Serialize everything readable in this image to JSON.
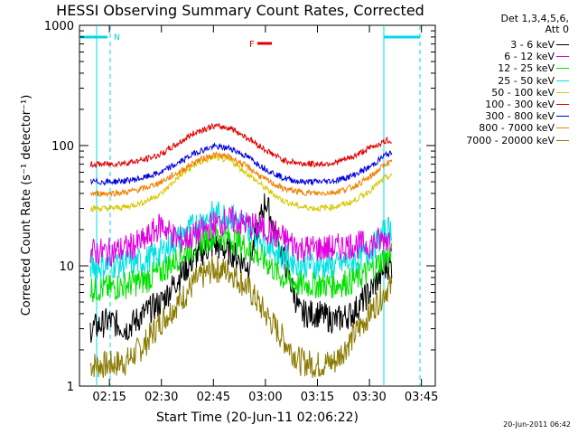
{
  "chart_data": {
    "type": "line",
    "title": "HESSI Observing Summary Count Rates, Corrected",
    "xlabel": "Start Time (20-Jun-11 02:06:22)",
    "ylabel": "Corrected Count Rate (s⁻¹ detector⁻¹)",
    "yscale": "log",
    "ylim": [
      1,
      1000
    ],
    "xlim": [
      "02:06:22",
      "03:49:00"
    ],
    "x_ticks": [
      "02:15",
      "02:30",
      "02:45",
      "03:00",
      "03:15",
      "03:30",
      "03:45"
    ],
    "y_ticks": [
      "1",
      "10",
      "100",
      "1000"
    ],
    "grid": false,
    "legend_position": "right",
    "legend_header": [
      "Det 1,3,4,5,6,",
      "Att 0"
    ],
    "flag_label": "F",
    "night_marker_label": "N",
    "series": [
      {
        "name": "3 - 6 keV",
        "color": "#000000",
        "x": [
          "02:10",
          "02:15",
          "02:20",
          "02:25",
          "02:30",
          "02:35",
          "02:40",
          "02:45",
          "02:50",
          "02:55",
          "03:00",
          "03:05",
          "03:10",
          "03:15",
          "03:20",
          "03:25",
          "03:30",
          "03:35"
        ],
        "values": [
          3,
          3.5,
          3,
          4,
          5,
          8,
          12,
          15,
          13,
          10,
          35,
          12,
          4,
          4,
          3.5,
          4,
          6,
          10
        ]
      },
      {
        "name": "6 - 12 keV",
        "color": "#e000e0",
        "x": [
          "02:10",
          "02:15",
          "02:20",
          "02:25",
          "02:30",
          "02:35",
          "02:40",
          "02:45",
          "02:50",
          "02:55",
          "03:00",
          "03:05",
          "03:10",
          "03:15",
          "03:20",
          "03:25",
          "03:30",
          "03:35"
        ],
        "values": [
          13,
          13,
          14,
          16,
          22,
          16,
          18,
          22,
          24,
          22,
          20,
          17,
          14,
          14,
          14,
          15,
          15,
          17
        ]
      },
      {
        "name": "12 - 25 keV",
        "color": "#00e000",
        "x": [
          "02:10",
          "02:15",
          "02:20",
          "02:25",
          "02:30",
          "02:35",
          "02:40",
          "02:45",
          "02:50",
          "02:55",
          "03:00",
          "03:05",
          "03:10",
          "03:15",
          "03:20",
          "03:25",
          "03:30",
          "03:35"
        ],
        "values": [
          6.5,
          6.5,
          7,
          7.5,
          9,
          12,
          15,
          18,
          17,
          14,
          11,
          8,
          7,
          7,
          7,
          7.5,
          9,
          12
        ]
      },
      {
        "name": "25 - 50 keV",
        "color": "#00e0e0",
        "x": [
          "02:10",
          "02:15",
          "02:20",
          "02:25",
          "02:30",
          "02:35",
          "02:40",
          "02:45",
          "02:50",
          "02:55",
          "03:00",
          "03:05",
          "03:10",
          "03:15",
          "03:20",
          "03:25",
          "03:30",
          "03:35"
        ],
        "values": [
          10,
          10,
          10.5,
          11,
          13,
          17,
          22,
          27,
          26,
          21,
          16,
          12,
          10.5,
          10,
          10,
          11,
          13,
          20
        ]
      },
      {
        "name": "50 - 100 keV",
        "color": "#d8c800",
        "x": [
          "02:10",
          "02:15",
          "02:20",
          "02:25",
          "02:30",
          "02:35",
          "02:40",
          "02:45",
          "02:50",
          "02:55",
          "03:00",
          "03:05",
          "03:10",
          "03:15",
          "03:20",
          "03:25",
          "03:30",
          "03:35"
        ],
        "values": [
          30,
          30,
          31,
          34,
          40,
          55,
          70,
          80,
          75,
          58,
          44,
          35,
          31,
          30,
          31,
          34,
          42,
          55
        ]
      },
      {
        "name": "100 - 300 keV",
        "color": "#e00000",
        "x": [
          "02:10",
          "02:15",
          "02:20",
          "02:25",
          "02:30",
          "02:35",
          "02:40",
          "02:45",
          "02:50",
          "02:55",
          "03:00",
          "03:05",
          "03:10",
          "03:15",
          "03:20",
          "03:25",
          "03:30",
          "03:35"
        ],
        "values": [
          70,
          70,
          72,
          76,
          85,
          105,
          130,
          145,
          140,
          115,
          92,
          76,
          71,
          70,
          72,
          80,
          95,
          110
        ]
      },
      {
        "name": "300 - 800 keV",
        "color": "#0000e0",
        "x": [
          "02:10",
          "02:15",
          "02:20",
          "02:25",
          "02:30",
          "02:35",
          "02:40",
          "02:45",
          "02:50",
          "02:55",
          "03:00",
          "03:05",
          "03:10",
          "03:15",
          "03:20",
          "03:25",
          "03:30",
          "03:35"
        ],
        "values": [
          50,
          50,
          51,
          54,
          60,
          72,
          88,
          98,
          95,
          80,
          64,
          54,
          50,
          50,
          51,
          56,
          66,
          85
        ]
      },
      {
        "name": "800 - 7000 keV",
        "color": "#f08000",
        "x": [
          "02:10",
          "02:15",
          "02:20",
          "02:25",
          "02:30",
          "02:35",
          "02:40",
          "02:45",
          "02:50",
          "02:55",
          "03:00",
          "03:05",
          "03:10",
          "03:15",
          "03:20",
          "03:25",
          "03:30",
          "03:35"
        ],
        "values": [
          40,
          40,
          41,
          44,
          50,
          60,
          74,
          84,
          80,
          66,
          52,
          44,
          41,
          40,
          41,
          45,
          54,
          72
        ]
      },
      {
        "name": "7000 - 20000 keV",
        "color": "#8a7a00",
        "x": [
          "02:10",
          "02:15",
          "02:20",
          "02:25",
          "02:30",
          "02:35",
          "02:40",
          "02:45",
          "02:50",
          "02:55",
          "03:00",
          "03:05",
          "03:10",
          "03:15",
          "03:20",
          "03:25",
          "03:30",
          "03:35"
        ],
        "values": [
          1.5,
          1.5,
          1.6,
          2.2,
          3.5,
          5,
          7.5,
          9.5,
          9,
          6.5,
          4,
          2.5,
          1.6,
          1.5,
          1.6,
          2.5,
          4,
          6.5
        ]
      }
    ]
  },
  "footer": {
    "timestamp": "20-Jun-2011 06:42"
  }
}
